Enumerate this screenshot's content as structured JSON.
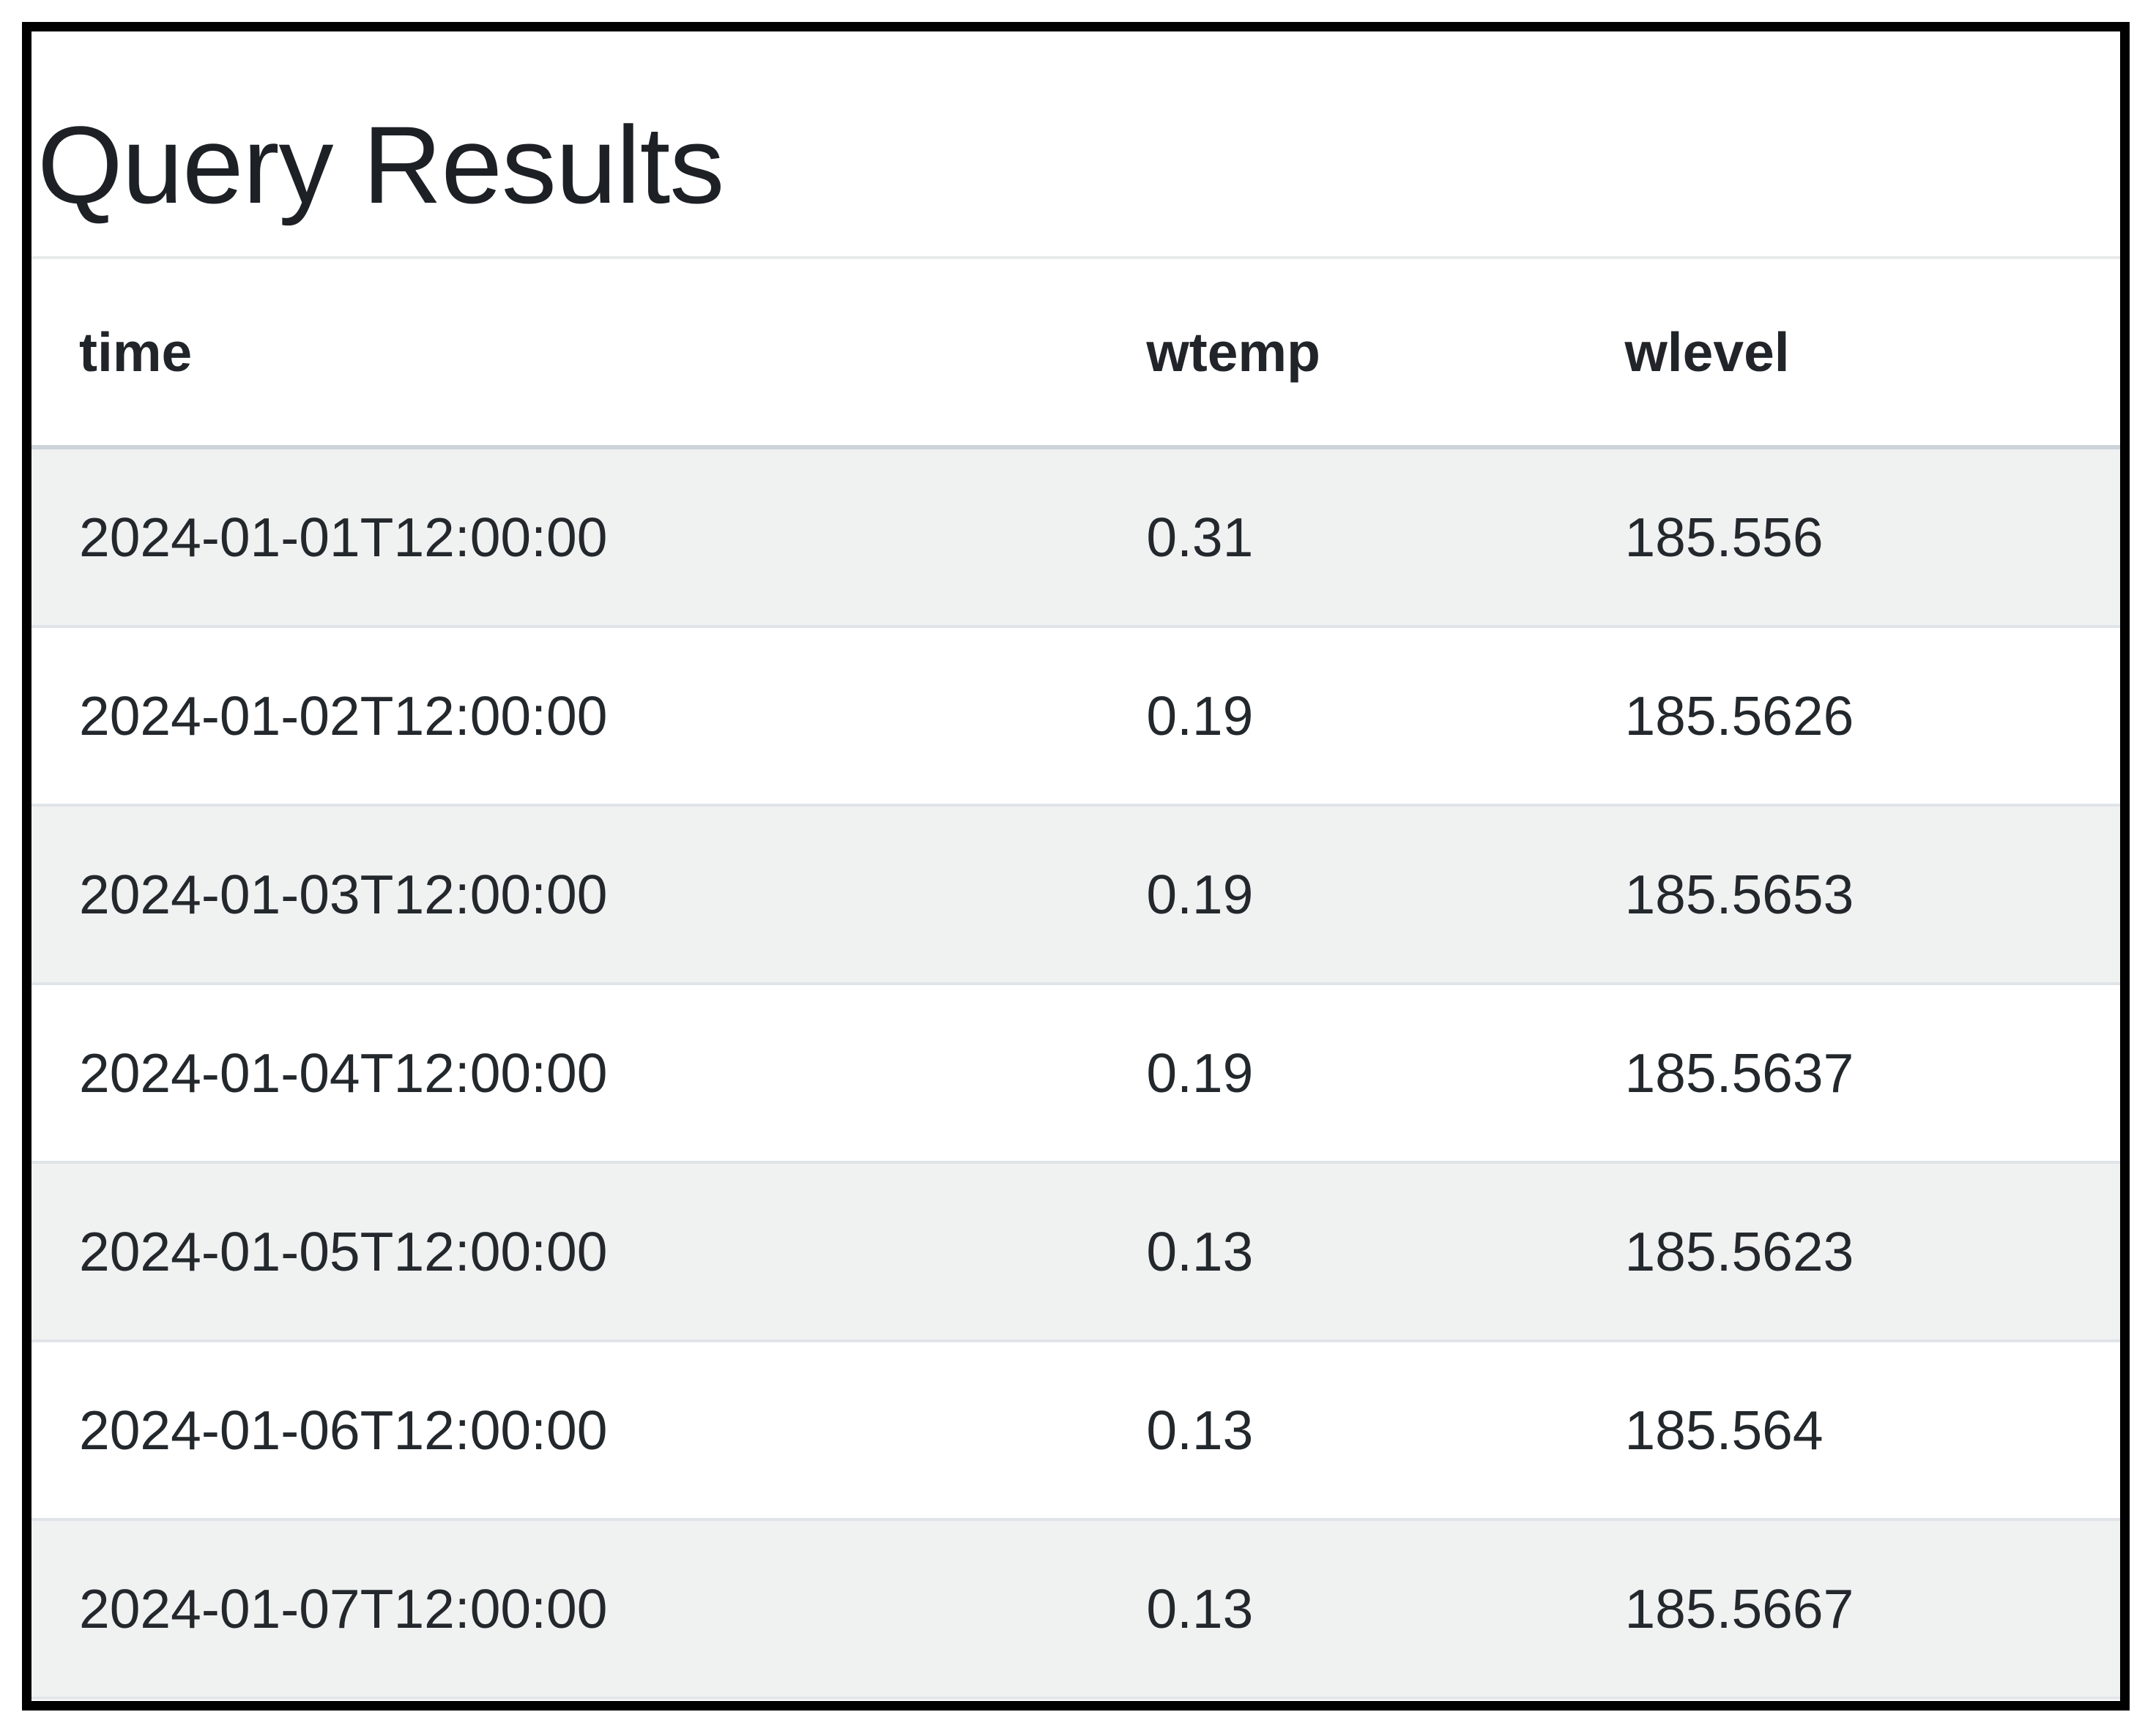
{
  "page": {
    "title": "Query Results"
  },
  "table": {
    "columns": [
      "time",
      "wtemp",
      "wlevel"
    ],
    "rows": [
      {
        "time": "2024-01-01T12:00:00",
        "wtemp": "0.31",
        "wlevel": "185.556"
      },
      {
        "time": "2024-01-02T12:00:00",
        "wtemp": "0.19",
        "wlevel": "185.5626"
      },
      {
        "time": "2024-01-03T12:00:00",
        "wtemp": "0.19",
        "wlevel": "185.5653"
      },
      {
        "time": "2024-01-04T12:00:00",
        "wtemp": "0.19",
        "wlevel": "185.5637"
      },
      {
        "time": "2024-01-05T12:00:00",
        "wtemp": "0.13",
        "wlevel": "185.5623"
      },
      {
        "time": "2024-01-06T12:00:00",
        "wtemp": "0.13",
        "wlevel": "185.564"
      },
      {
        "time": "2024-01-07T12:00:00",
        "wtemp": "0.13",
        "wlevel": "185.5667"
      }
    ],
    "row_stripe_color": "#f0f1f1",
    "header_border_color": "#ccd4da",
    "row_border_color": "#e0e4e8"
  },
  "frame": {
    "border_color": "#000000"
  },
  "colors": {
    "text": "#212529",
    "background": "#ffffff"
  }
}
